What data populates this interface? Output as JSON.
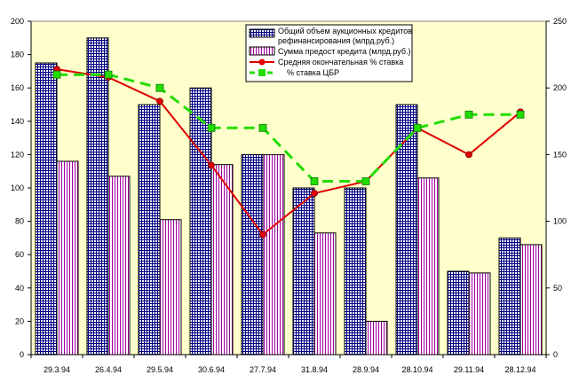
{
  "chart_data": {
    "type": "bar",
    "categories": [
      "29.3.94",
      "26.4.94",
      "29.5.94",
      "30.6.94",
      "27.7.94",
      "31.8.94",
      "28.9.94",
      "28.10.94",
      "29.11.94",
      "28.12.94"
    ],
    "series": [
      {
        "name": "Общий объем аукционных кредитов рефинансирования (млрд.руб.)",
        "kind": "bar",
        "axis": "left",
        "pattern": "grid",
        "values": [
          175,
          190,
          150,
          160,
          120,
          100,
          100,
          150,
          50,
          70
        ]
      },
      {
        "name": "Сумма предост кредита (млрд.руб.)",
        "kind": "bar",
        "axis": "left",
        "pattern": "vstripe",
        "values": [
          116,
          107,
          81,
          114,
          120,
          73,
          20,
          106,
          49,
          66
        ]
      },
      {
        "name": "Средняя окончательная % ставка",
        "kind": "line",
        "axis": "right",
        "color": "#e00000",
        "marker": "circle",
        "values": [
          214,
          208,
          190,
          142,
          90,
          121,
          130,
          170,
          150,
          182
        ]
      },
      {
        "name": "% ставка ЦБР",
        "kind": "line",
        "axis": "right",
        "color": "#22dd00",
        "marker": "square",
        "dashed": true,
        "values": [
          210,
          210,
          200,
          170,
          170,
          130,
          130,
          170,
          180,
          180
        ]
      }
    ],
    "y_left": {
      "min": 0,
      "max": 200,
      "ticks": [
        0,
        20,
        40,
        60,
        80,
        100,
        120,
        140,
        160,
        180,
        200
      ]
    },
    "y_right": {
      "min": 0,
      "max": 250,
      "ticks": [
        0,
        50,
        100,
        150,
        200,
        250
      ]
    },
    "legend_lines": [
      [
        "Общий объем аукционных кредитов",
        "рефинансирования (млрд.руб.)"
      ],
      [
        "Сумма предост кредита (млрд.руб.)"
      ],
      [
        "Средняя окончательная % ставка"
      ],
      [
        "% ставка ЦБР"
      ]
    ],
    "legend_position": "top-center",
    "grid": false,
    "plot_background": "#ffffcc",
    "colors": {
      "bar_grid_line": "#000080",
      "bar_stripe": "#a000a0",
      "red_line": "#e00000",
      "green_line": "#22dd00"
    }
  }
}
